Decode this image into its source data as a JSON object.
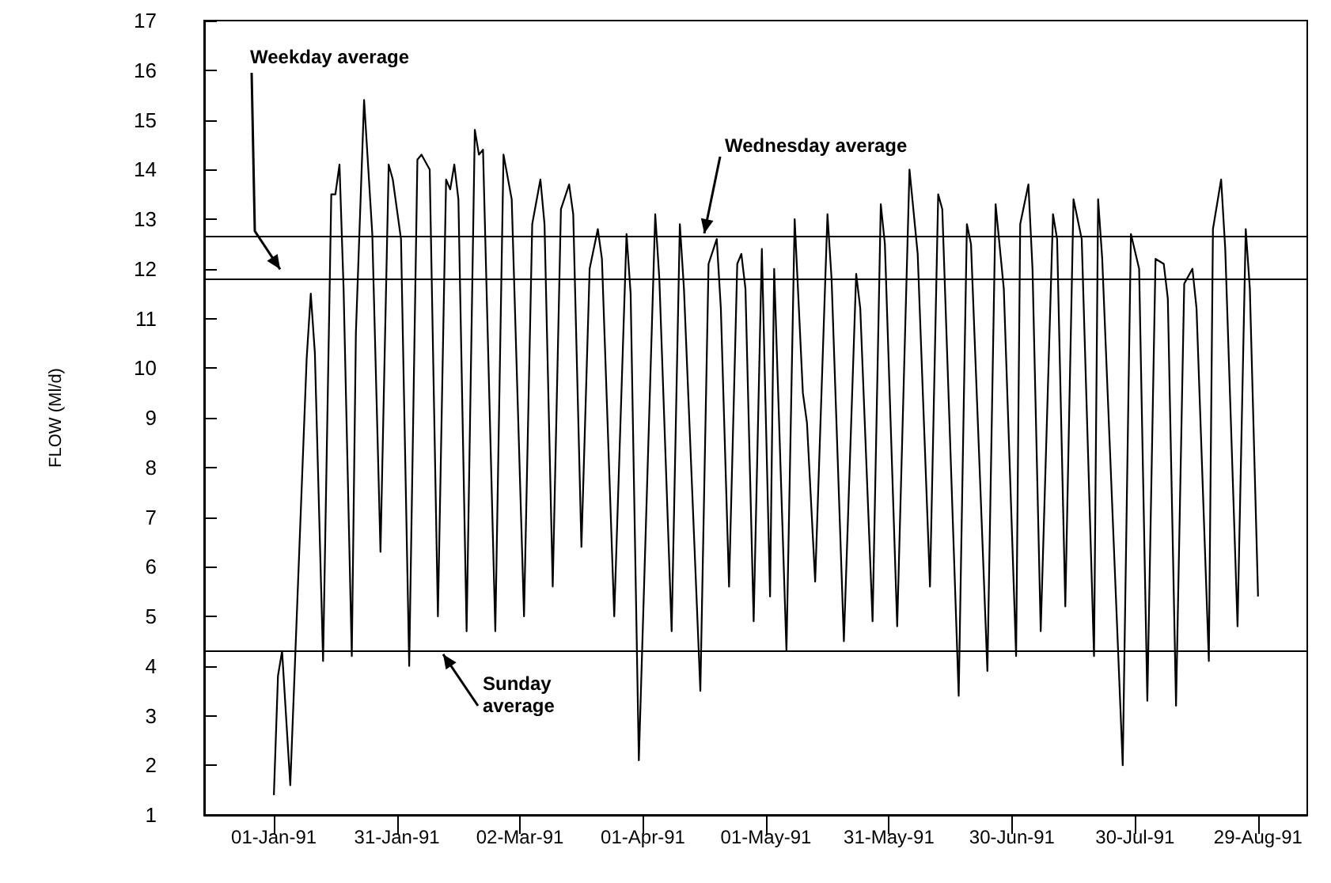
{
  "chart_data": {
    "type": "line",
    "ylabel": "FLOW (Ml/d)",
    "x": [
      "1991-01-01",
      "1991-01-02",
      "1991-01-03",
      "1991-01-05",
      "1991-01-09",
      "1991-01-10",
      "1991-01-11",
      "1991-01-13",
      "1991-01-15",
      "1991-01-16",
      "1991-01-17",
      "1991-01-18",
      "1991-01-20",
      "1991-01-21",
      "1991-01-23",
      "1991-01-25",
      "1991-01-27",
      "1991-01-29",
      "1991-01-30",
      "1991-02-01",
      "1991-02-03",
      "1991-02-05",
      "1991-02-06",
      "1991-02-08",
      "1991-02-10",
      "1991-02-12",
      "1991-02-13",
      "1991-02-14",
      "1991-02-15",
      "1991-02-17",
      "1991-02-19",
      "1991-02-20",
      "1991-02-21",
      "1991-02-24",
      "1991-02-26",
      "1991-02-28",
      "1991-03-03",
      "1991-03-05",
      "1991-03-07",
      "1991-03-08",
      "1991-03-10",
      "1991-03-12",
      "1991-03-14",
      "1991-03-15",
      "1991-03-17",
      "1991-03-19",
      "1991-03-21",
      "1991-03-22",
      "1991-03-25",
      "1991-03-28",
      "1991-03-29",
      "1991-03-31",
      "1991-04-04",
      "1991-04-05",
      "1991-04-08",
      "1991-04-10",
      "1991-04-11",
      "1991-04-15",
      "1991-04-17",
      "1991-04-19",
      "1991-04-20",
      "1991-04-22",
      "1991-04-24",
      "1991-04-25",
      "1991-04-26",
      "1991-04-28",
      "1991-04-30",
      "1991-05-02",
      "1991-05-03",
      "1991-05-06",
      "1991-05-08",
      "1991-05-10",
      "1991-05-11",
      "1991-05-13",
      "1991-05-16",
      "1991-05-17",
      "1991-05-20",
      "1991-05-23",
      "1991-05-24",
      "1991-05-27",
      "1991-05-29",
      "1991-05-30",
      "1991-06-02",
      "1991-06-05",
      "1991-06-07",
      "1991-06-10",
      "1991-06-12",
      "1991-06-13",
      "1991-06-17",
      "1991-06-19",
      "1991-06-20",
      "1991-06-24",
      "1991-06-26",
      "1991-06-28",
      "1991-07-01",
      "1991-07-02",
      "1991-07-04",
      "1991-07-05",
      "1991-07-07",
      "1991-07-10",
      "1991-07-11",
      "1991-07-13",
      "1991-07-15",
      "1991-07-17",
      "1991-07-20",
      "1991-07-21",
      "1991-07-22",
      "1991-07-27",
      "1991-07-29",
      "1991-07-31",
      "1991-08-02",
      "1991-08-04",
      "1991-08-06",
      "1991-08-07",
      "1991-08-09",
      "1991-08-11",
      "1991-08-13",
      "1991-08-14",
      "1991-08-17",
      "1991-08-18",
      "1991-08-20",
      "1991-08-21",
      "1991-08-24",
      "1991-08-26",
      "1991-08-27",
      "1991-08-29"
    ],
    "series": [
      {
        "color": "#000000",
        "values": [
          1.4,
          3.8,
          4.3,
          1.6,
          10.2,
          11.5,
          10.3,
          4.1,
          13.5,
          13.5,
          14.1,
          11.6,
          4.2,
          10.7,
          15.4,
          12.7,
          6.3,
          14.1,
          13.8,
          12.6,
          4.0,
          14.2,
          14.3,
          14.0,
          5.0,
          13.8,
          13.6,
          14.1,
          13.4,
          4.7,
          14.8,
          14.3,
          14.4,
          4.7,
          14.3,
          13.4,
          5.0,
          12.9,
          13.8,
          12.9,
          5.6,
          13.2,
          13.7,
          13.1,
          6.4,
          12.0,
          12.8,
          12.2,
          5.0,
          12.7,
          11.5,
          2.1,
          13.1,
          11.8,
          4.7,
          12.9,
          11.6,
          3.5,
          12.1,
          12.6,
          11.2,
          5.6,
          12.1,
          12.3,
          11.6,
          4.9,
          12.4,
          5.4,
          12.0,
          4.3,
          13.0,
          9.5,
          8.9,
          5.7,
          13.1,
          11.8,
          4.5,
          11.9,
          11.2,
          4.9,
          13.3,
          12.5,
          4.8,
          14.0,
          12.3,
          5.6,
          13.5,
          13.2,
          3.4,
          12.9,
          12.5,
          3.9,
          13.3,
          11.6,
          4.2,
          12.9,
          13.7,
          12.0,
          4.7,
          13.1,
          12.6,
          5.2,
          13.4,
          12.6,
          4.2,
          13.4,
          12.2,
          2.0,
          12.7,
          12.0,
          3.3,
          12.2,
          12.1,
          11.4,
          3.2,
          11.7,
          12.0,
          11.2,
          4.1,
          12.8,
          13.8,
          12.4,
          4.8,
          12.8,
          11.6,
          5.4
        ]
      }
    ],
    "xlim": [
      "1990-12-15",
      "1991-09-10"
    ],
    "xticks": [
      {
        "value": "1991-01-01",
        "label": "01-Jan-91"
      },
      {
        "value": "1991-01-31",
        "label": "31-Jan-91"
      },
      {
        "value": "1991-03-02",
        "label": "02-Mar-91"
      },
      {
        "value": "1991-04-01",
        "label": "01-Apr-91"
      },
      {
        "value": "1991-05-01",
        "label": "01-May-91"
      },
      {
        "value": "1991-05-31",
        "label": "31-May-91"
      },
      {
        "value": "1991-06-30",
        "label": "30-Jun-91"
      },
      {
        "value": "1991-07-30",
        "label": "30-Jul-91"
      },
      {
        "value": "1991-08-29",
        "label": "29-Aug-91"
      }
    ],
    "ylim": [
      1,
      17
    ],
    "yticks": [
      1,
      2,
      3,
      4,
      5,
      6,
      7,
      8,
      9,
      10,
      11,
      12,
      13,
      14,
      15,
      16,
      17
    ],
    "ref_lines": [
      {
        "axis": "y",
        "value": 11.8,
        "label": "Weekday average",
        "color": "#000000"
      },
      {
        "axis": "y",
        "value": 12.65,
        "label": "Wednesday average",
        "color": "#000000"
      },
      {
        "axis": "y",
        "value": 4.3,
        "label": "Sunday average",
        "color": "#000000"
      }
    ]
  }
}
